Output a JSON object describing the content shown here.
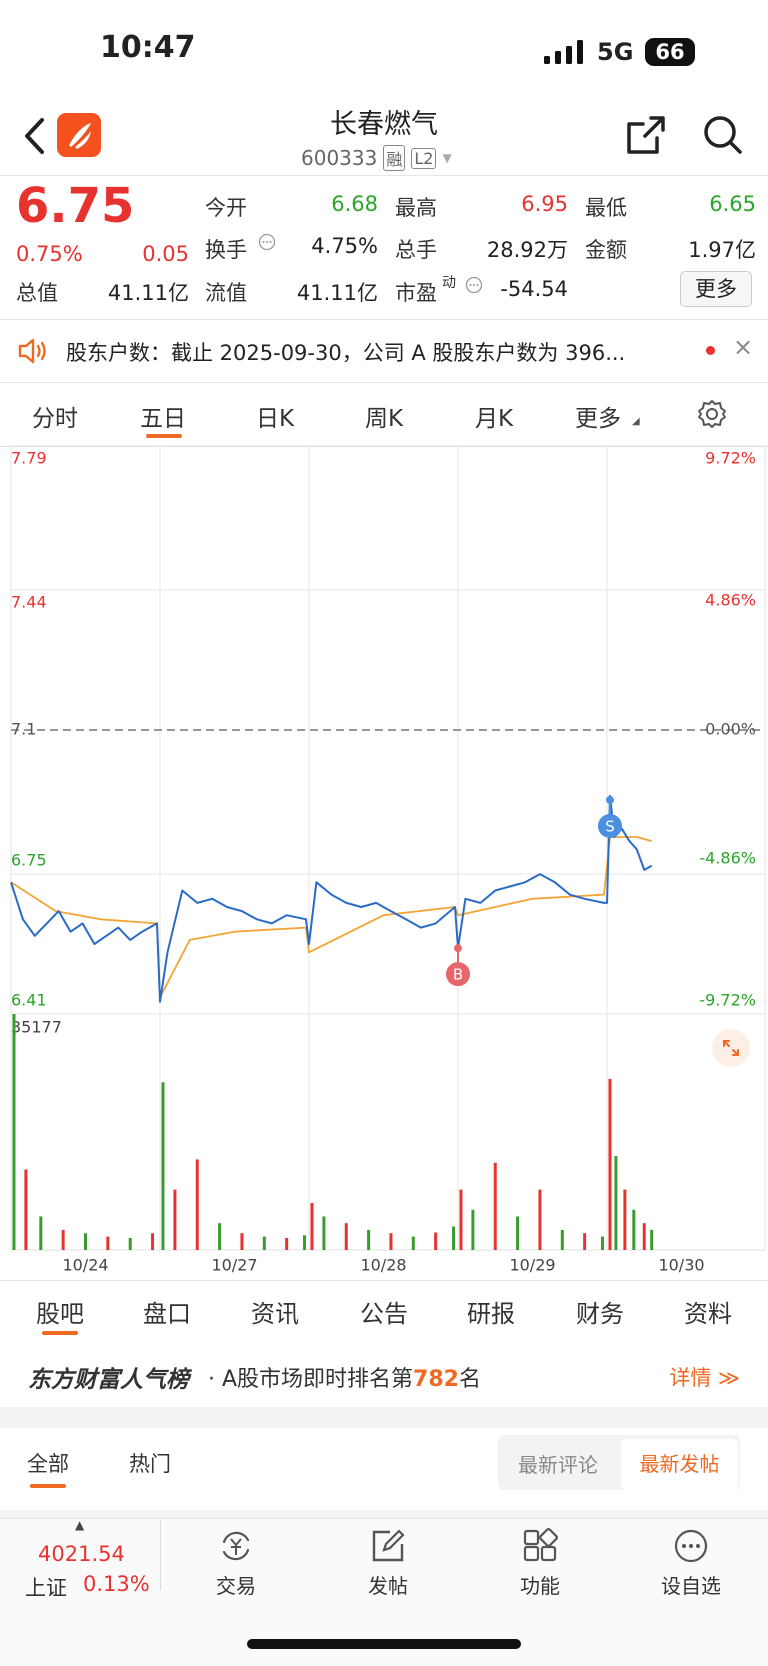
{
  "status_bar": {
    "time": "10:47",
    "network": "5G",
    "battery": "66"
  },
  "header": {
    "title": "长春燃气",
    "code": "600333",
    "badges": [
      "融",
      "L2"
    ]
  },
  "quote": {
    "price": "6.75",
    "change_pct": "0.75%",
    "change": "0.05",
    "stats": [
      {
        "label": "今开",
        "value": "6.68"
      },
      {
        "label": "最高",
        "value": "6.95"
      },
      {
        "label": "最低",
        "value": "6.65"
      },
      {
        "label": "换手",
        "value": "4.75%"
      },
      {
        "label": "总手",
        "value": "28.92万"
      },
      {
        "label": "金额",
        "value": "1.97亿"
      },
      {
        "label": "总值",
        "value": "41.11亿"
      },
      {
        "label": "流值",
        "value": "41.11亿"
      },
      {
        "label": "市盈",
        "sup": "动",
        "value": "-54.54"
      }
    ],
    "more": "更多"
  },
  "notice": {
    "text": "股东户数：截止 2025-09-30，公司 A 股股东户数为 396..."
  },
  "chart_tabs": [
    "分时",
    "五日",
    "日K",
    "周K",
    "月K",
    "更多"
  ],
  "chart_data": [
    {
      "type": "line",
      "xlim": [
        0,
        5
      ],
      "xticks": [
        {
          "value": 0.5,
          "label": "10/24"
        },
        {
          "value": 1.5,
          "label": "10/27"
        },
        {
          "value": 2.5,
          "label": "10/28"
        },
        {
          "value": 3.5,
          "label": "10/29"
        },
        {
          "value": 4.5,
          "label": "10/30"
        }
      ],
      "xgrid": [
        1,
        2,
        3,
        4
      ],
      "ylim": [
        6.41,
        7.79
      ],
      "yticks": [
        7.79,
        7.44,
        7.1,
        6.75,
        6.41
      ],
      "reference_line": 7.1,
      "y2lim": [
        -9.72,
        9.72
      ],
      "y2ticks": [
        {
          "value": 9.72,
          "label": "9.72%"
        },
        {
          "value": 4.86,
          "label": "4.86%"
        },
        {
          "value": 0,
          "label": "0.00%"
        },
        {
          "value": -4.86,
          "label": "-4.86%"
        },
        {
          "value": -9.72,
          "label": "-9.72%"
        }
      ],
      "series": [
        {
          "color": "#2a6bc7",
          "x": [
            0,
            0.08,
            0.16,
            0.24,
            0.32,
            0.4,
            0.48,
            0.56,
            0.64,
            0.72,
            0.8,
            0.88,
            0.98,
            1,
            1.05,
            1.15,
            1.25,
            1.35,
            1.45,
            1.55,
            1.65,
            1.75,
            1.85,
            1.98,
            2,
            2.05,
            2.15,
            2.25,
            2.35,
            2.45,
            2.55,
            2.65,
            2.75,
            2.85,
            2.98,
            3,
            3.05,
            3.15,
            3.25,
            3.35,
            3.45,
            3.55,
            3.65,
            3.75,
            3.85,
            3.98,
            4,
            4.02,
            4.05,
            4.1,
            4.15,
            4.2,
            4.25,
            4.3
          ],
          "values": [
            6.73,
            6.64,
            6.6,
            6.63,
            6.66,
            6.61,
            6.63,
            6.58,
            6.6,
            6.62,
            6.59,
            6.61,
            6.63,
            6.44,
            6.56,
            6.71,
            6.68,
            6.69,
            6.67,
            6.66,
            6.64,
            6.63,
            6.65,
            6.64,
            6.58,
            6.73,
            6.7,
            6.68,
            6.67,
            6.68,
            6.66,
            6.64,
            6.62,
            6.63,
            6.67,
            6.57,
            6.69,
            6.68,
            6.71,
            6.72,
            6.73,
            6.75,
            6.73,
            6.7,
            6.69,
            6.68,
            6.68,
            6.94,
            6.84,
            6.86,
            6.83,
            6.81,
            6.76,
            6.77
          ]
        },
        {
          "color": "#f2a533",
          "x": [
            0,
            0.3,
            0.6,
            0.98,
            1,
            1.2,
            1.5,
            1.98,
            2,
            2.5,
            2.98,
            3,
            3.5,
            3.98,
            4.02,
            4.2,
            4.3
          ],
          "values": [
            6.73,
            6.66,
            6.64,
            6.63,
            6.45,
            6.59,
            6.61,
            6.62,
            6.56,
            6.65,
            6.67,
            6.65,
            6.69,
            6.7,
            6.84,
            6.84,
            6.83
          ]
        }
      ],
      "annotations": [
        {
          "text": "B",
          "x": 3,
          "value": 6.57,
          "color": "#e8666a"
        },
        {
          "text": "S",
          "x": 4.02,
          "value": 6.93,
          "color": "#4a8fe0"
        }
      ]
    },
    {
      "type": "bar",
      "xlim": [
        0,
        5
      ],
      "ylim": [
        0,
        35177
      ],
      "yticks": [
        35177
      ],
      "x": [
        0.02,
        0.1,
        0.2,
        0.35,
        0.5,
        0.65,
        0.8,
        0.95,
        1.02,
        1.1,
        1.25,
        1.4,
        1.55,
        1.7,
        1.85,
        1.97,
        2.02,
        2.1,
        2.25,
        2.4,
        2.55,
        2.7,
        2.85,
        2.97,
        3.02,
        3.1,
        3.25,
        3.4,
        3.55,
        3.7,
        3.85,
        3.97,
        4.02,
        4.06,
        4.12,
        4.18,
        4.25,
        4.3
      ],
      "values": [
        35177,
        12000,
        5000,
        3000,
        2500,
        2000,
        1800,
        2500,
        25000,
        9000,
        13500,
        4000,
        2500,
        2000,
        1800,
        2200,
        7000,
        5000,
        4000,
        3000,
        2500,
        2000,
        2600,
        3500,
        9000,
        6000,
        13000,
        5000,
        9000,
        3000,
        2500,
        2000,
        25500,
        14000,
        9000,
        6000,
        4000,
        3000
      ],
      "colors": [
        "#3a9b2f",
        "#e8322f",
        "#3a9b2f",
        "#e8322f",
        "#3a9b2f",
        "#e8322f",
        "#3a9b2f",
        "#e8322f",
        "#3a9b2f",
        "#e8322f",
        "#e8322f",
        "#3a9b2f",
        "#e8322f",
        "#3a9b2f",
        "#e8322f",
        "#3a9b2f",
        "#e8322f",
        "#3a9b2f",
        "#e8322f",
        "#3a9b2f",
        "#e8322f",
        "#3a9b2f",
        "#e8322f",
        "#3a9b2f",
        "#e8322f",
        "#3a9b2f",
        "#e8322f",
        "#3a9b2f",
        "#e8322f",
        "#3a9b2f",
        "#e8322f",
        "#3a9b2f",
        "#e8322f",
        "#3a9b2f",
        "#e8322f",
        "#3a9b2f",
        "#e8322f",
        "#3a9b2f"
      ]
    }
  ],
  "section_tabs": [
    "股吧",
    "盘口",
    "资讯",
    "公告",
    "研报",
    "财务",
    "资料"
  ],
  "banner": {
    "brand": "东方财富人气榜",
    "text_prefix": "· A股市场即时排名第",
    "rank": "782",
    "text_suffix": "名",
    "link": "详情 ≫"
  },
  "feed_tabs": [
    "全部",
    "热门"
  ],
  "sort_options": [
    "最新评论",
    "最新发帖"
  ],
  "bottom_bar": {
    "index_value": "4021.54",
    "index_name": "上证",
    "index_change": "0.13%",
    "items": [
      "交易",
      "发帖",
      "功能",
      "设自选"
    ]
  }
}
